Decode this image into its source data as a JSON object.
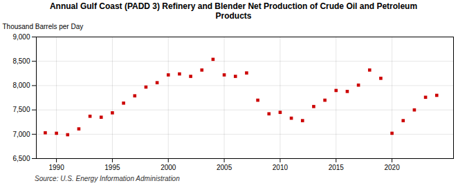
{
  "chart_data": {
    "type": "scatter",
    "title": "Annual Gulf Coast (PADD 3) Refinery and Blender Net Production of Crude Oil and Petroleum\nProducts",
    "ylabel": "Thousand Barrels per Day",
    "annotation": "Source: U.S. Energy Information Administration",
    "x": [
      1989,
      1990,
      1991,
      1992,
      1993,
      1994,
      1995,
      1996,
      1997,
      1998,
      1999,
      2000,
      2001,
      2002,
      2003,
      2004,
      2005,
      2006,
      2007,
      2008,
      2009,
      2010,
      2011,
      2012,
      2013,
      2014,
      2015,
      2016,
      2017,
      2018,
      2019,
      2020,
      2021,
      2022,
      2023,
      2024
    ],
    "values": [
      7030,
      7020,
      6990,
      7110,
      7370,
      7350,
      7440,
      7640,
      7790,
      7970,
      8060,
      8220,
      8240,
      8190,
      8320,
      8540,
      8220,
      8190,
      8260,
      7700,
      7420,
      7450,
      7330,
      7280,
      7570,
      7700,
      7900,
      7880,
      8010,
      8320,
      8150,
      7020,
      7280,
      7500,
      7760,
      7800
    ],
    "color": "#cc0000",
    "marker": "square",
    "grid": true,
    "xlim": [
      1988.2,
      2025.5
    ],
    "xticks": [
      1990,
      1995,
      2000,
      2005,
      2010,
      2015,
      2020
    ],
    "ylim": [
      6500,
      9000
    ],
    "yticks": [
      {
        "value": 6500,
        "label": "6,500"
      },
      {
        "value": 7000,
        "label": "7,000"
      },
      {
        "value": 7500,
        "label": "7,500"
      },
      {
        "value": 8000,
        "label": "8,000"
      },
      {
        "value": 8500,
        "label": "8,500"
      },
      {
        "value": 9000,
        "label": "9,000"
      }
    ]
  }
}
